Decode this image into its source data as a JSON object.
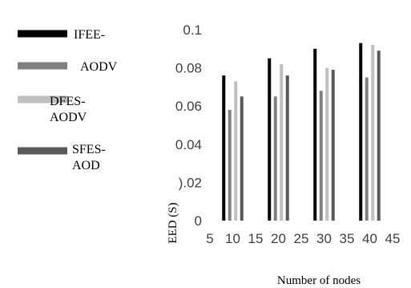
{
  "chart_data": {
    "type": "bar",
    "title": "",
    "xlabel": "Number of nodes",
    "ylabel": "EED (S)",
    "ylim": [
      0,
      0.1
    ],
    "y_ticks": [
      "0",
      ").02",
      "0.04",
      "0.06",
      "0.08",
      "0.1"
    ],
    "x_ticks": [
      "5",
      "10",
      "15",
      "20",
      "25",
      "30",
      "35",
      "40",
      "45"
    ],
    "categories": [
      "10",
      "20",
      "30",
      "40"
    ],
    "series": [
      {
        "name": "IFEE-",
        "color": "#000000",
        "values": [
          0.076,
          0.085,
          0.09,
          0.093
        ]
      },
      {
        "name": "AODV",
        "color": "#808080",
        "values": [
          0.058,
          0.065,
          0.068,
          0.075
        ]
      },
      {
        "name": "DFES-AODV",
        "color": "#bfbfbf",
        "values": [
          0.073,
          0.082,
          0.08,
          0.092
        ]
      },
      {
        "name": "SFES-AOD",
        "color": "#595959",
        "values": [
          0.065,
          0.076,
          0.079,
          0.089
        ]
      }
    ],
    "legend": {
      "position": "left",
      "entries": [
        {
          "line1": "IFEE-",
          "line2": ""
        },
        {
          "line1": "AODV",
          "line2": ""
        },
        {
          "line1": "DFES-",
          "line2": "AODV"
        },
        {
          "line1": "SFES-",
          "line2": "AOD"
        }
      ]
    },
    "grid": false
  }
}
